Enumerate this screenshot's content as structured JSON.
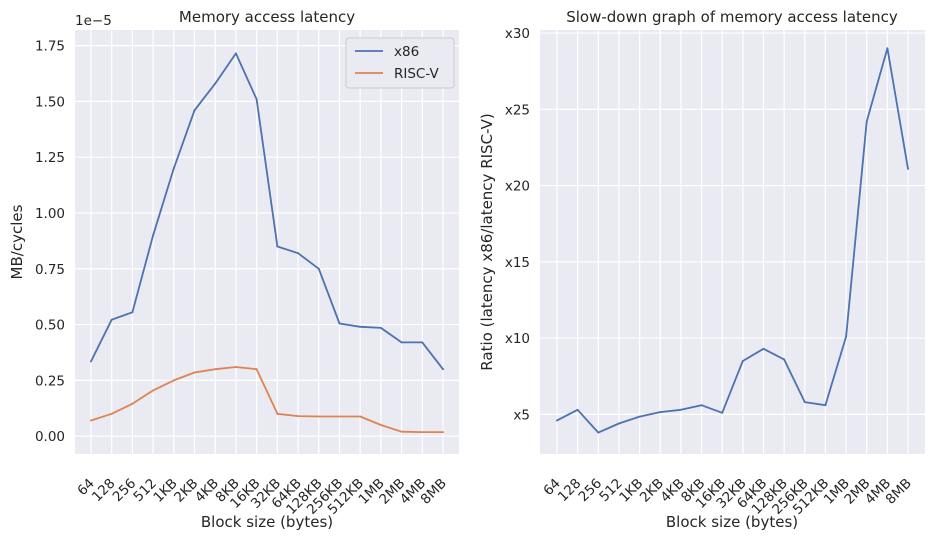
{
  "colors": {
    "x86": "#4c72b0",
    "riscv": "#dd8452",
    "plot_bg": "#eaeaf2",
    "grid": "#ffffff"
  },
  "chart_data": [
    {
      "type": "line",
      "title": "Memory access latency",
      "xlabel": "Block size (bytes)",
      "ylabel": "MB/cycles",
      "y_offset_text": "1e−5",
      "categories": [
        "64",
        "128",
        "256",
        "512",
        "1KB",
        "2KB",
        "4KB",
        "8KB",
        "16KB",
        "32KB",
        "64KB",
        "128KB",
        "256KB",
        "512KB",
        "1MB",
        "2MB",
        "4MB",
        "8MB"
      ],
      "ylim": [
        -0.08,
        1.82
      ],
      "yticks": [
        0.0,
        0.25,
        0.5,
        0.75,
        1.0,
        1.25,
        1.5,
        1.75
      ],
      "ytick_labels": [
        "0.00",
        "0.25",
        "0.50",
        "0.75",
        "1.00",
        "1.25",
        "1.50",
        "1.75"
      ],
      "legend": {
        "position": "top-right",
        "entries": [
          "x86",
          "RISC-V"
        ]
      },
      "grid": true,
      "series": [
        {
          "name": "x86",
          "color_key": "x86",
          "values": [
            0.335,
            0.522,
            0.555,
            0.9,
            1.2,
            1.46,
            1.58,
            1.715,
            1.51,
            0.85,
            0.82,
            0.75,
            0.505,
            0.49,
            0.485,
            0.42,
            0.42,
            0.3
          ]
        },
        {
          "name": "RISC-V",
          "color_key": "riscv",
          "values": [
            0.07,
            0.1,
            0.145,
            0.205,
            0.25,
            0.285,
            0.3,
            0.31,
            0.3,
            0.1,
            0.09,
            0.088,
            0.088,
            0.088,
            0.05,
            0.02,
            0.018,
            0.018
          ]
        }
      ]
    },
    {
      "type": "line",
      "title": "Slow-down graph of memory access latency",
      "xlabel": "Block size (bytes)",
      "ylabel": "Ratio (latency x86/latency RISC-V)",
      "categories": [
        "64",
        "128",
        "256",
        "512",
        "1KB",
        "2KB",
        "4KB",
        "8KB",
        "16KB",
        "32KB",
        "64KB",
        "128KB",
        "256KB",
        "512KB",
        "1MB",
        "2MB",
        "4MB",
        "8MB"
      ],
      "ylim": [
        2.4,
        30.2
      ],
      "yticks": [
        5,
        10,
        15,
        20,
        25,
        30
      ],
      "ytick_labels": [
        "x5",
        "x10",
        "x15",
        "x20",
        "x25",
        "x30"
      ],
      "grid": true,
      "series": [
        {
          "color_key": "x86",
          "values": [
            4.6,
            5.3,
            3.8,
            4.4,
            4.85,
            5.15,
            5.3,
            5.6,
            5.1,
            8.5,
            9.3,
            8.6,
            5.8,
            5.6,
            10.1,
            24.2,
            29.0,
            21.1
          ]
        }
      ]
    }
  ]
}
